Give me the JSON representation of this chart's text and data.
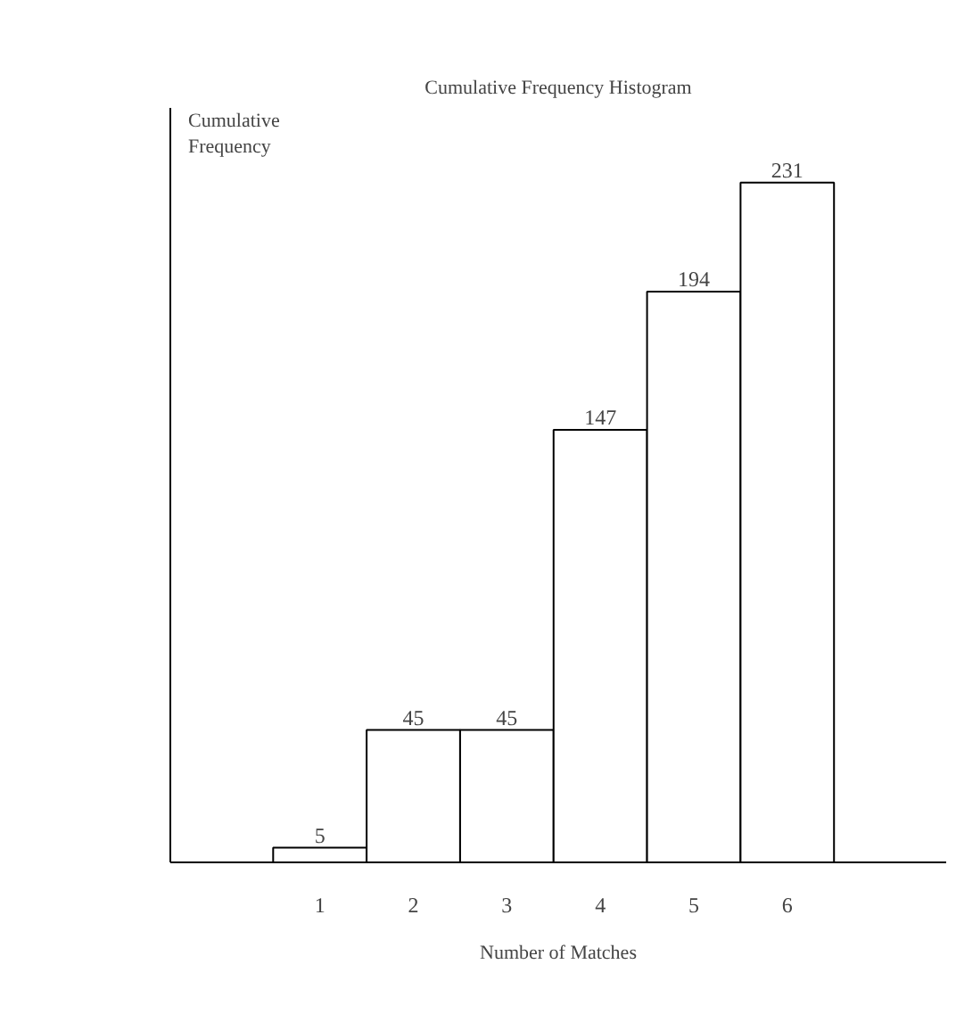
{
  "chart_data": {
    "type": "bar",
    "title": "Cumulative Frequency Histogram",
    "xlabel": "Number of Matches",
    "ylabel": "Cumulative Frequency",
    "categories": [
      "1",
      "2",
      "3",
      "4",
      "5",
      "6"
    ],
    "values": [
      5,
      45,
      45,
      147,
      194,
      231
    ],
    "color": "#ffffff",
    "data_labels": true,
    "grid": false
  }
}
